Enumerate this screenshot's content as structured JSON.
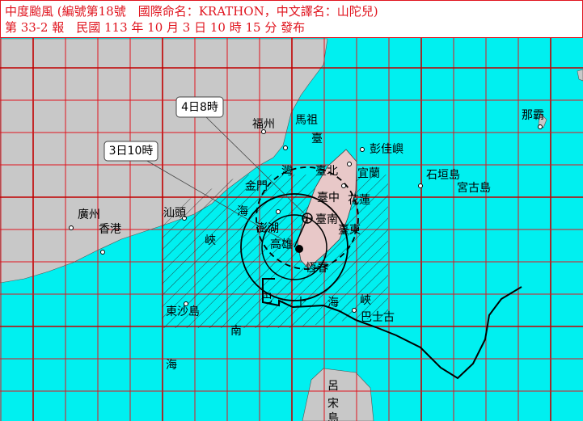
{
  "header": {
    "lines": [
      "中度颱風 (編號第18號　國際命名：KRATHON，中文譯名：山陀兒)",
      "第 33-2 報　民國 113 年 10 月 3 日 10 時 15 分 發布"
    ]
  },
  "forecast_labels": [
    "4日8時",
    "3日10時"
  ],
  "places": [
    "福州",
    "馬祖",
    "臺",
    "彭佳嶼",
    "那霸",
    "石垣島",
    "宮古島",
    "臺北",
    "宜蘭",
    "灣",
    "金門",
    "臺中",
    "花蓮",
    "廣州",
    "汕頭",
    "海",
    "澎湖",
    "臺南",
    "臺東",
    "香港",
    "峽",
    "高雄",
    "恆春",
    "巴",
    "士",
    "海",
    "峽",
    "巴士古",
    "東沙島",
    "南",
    "海",
    "呂",
    "宋",
    "島"
  ]
}
